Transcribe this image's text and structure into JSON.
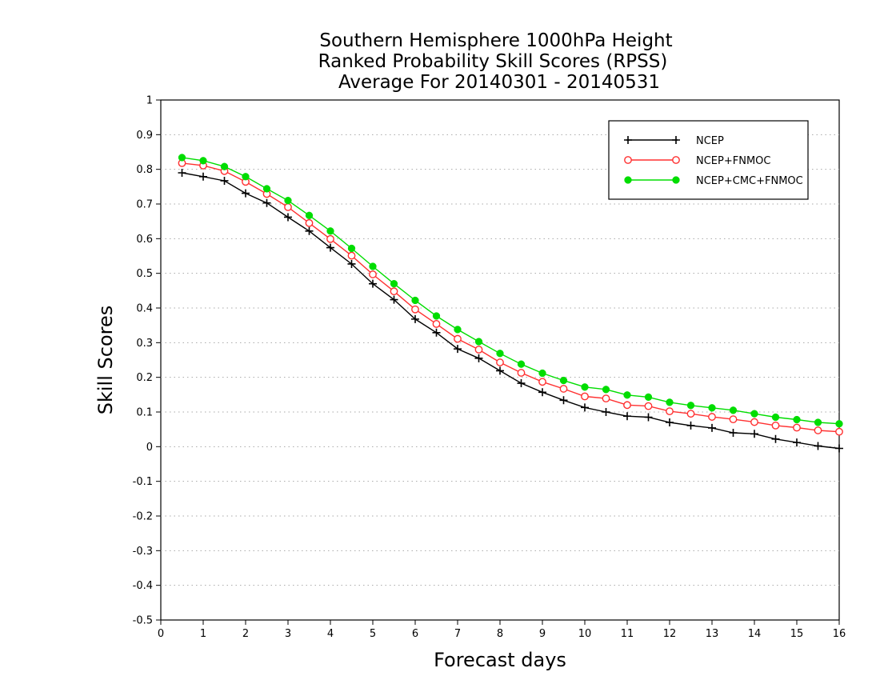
{
  "chart_data": {
    "type": "line",
    "title_lines": [
      "Southern Hemisphere 1000hPa Height",
      "Ranked Probability Skill Scores (RPSS)",
      "Average For 20140301 - 20140531"
    ],
    "xlabel": "Forecast days",
    "ylabel": "Skill Scores",
    "xlim": [
      0,
      16
    ],
    "ylim": [
      -0.5,
      1
    ],
    "x_ticks": [
      "0",
      "1",
      "2",
      "3",
      "4",
      "5",
      "6",
      "7",
      "8",
      "9",
      "10",
      "11",
      "12",
      "13",
      "14",
      "15",
      "16"
    ],
    "y_ticks": [
      "1",
      "0.9",
      "0.8",
      "0.7",
      "0.6",
      "0.5",
      "0.4",
      "0.3",
      "0.2",
      "0.1",
      "0",
      "-0.1",
      "-0.2",
      "-0.3",
      "-0.4",
      "-0.5"
    ],
    "y_tick_values": [
      1,
      0.9,
      0.8,
      0.7,
      0.6,
      0.5,
      0.4,
      0.3,
      0.2,
      0.1,
      0,
      -0.1,
      -0.2,
      -0.3,
      -0.4,
      -0.5
    ],
    "grid": "horizontal-dotted",
    "legend_position": "top-right",
    "x": [
      0.5,
      1,
      1.5,
      2,
      2.5,
      3,
      3.5,
      4,
      4.5,
      5,
      5.5,
      6,
      6.5,
      7,
      7.5,
      8,
      8.5,
      9,
      9.5,
      10,
      10.5,
      11,
      11.5,
      12,
      12.5,
      13,
      13.5,
      14,
      14.5,
      15,
      15.5,
      16
    ],
    "series": [
      {
        "name": "NCEP",
        "color": "#000000",
        "marker": "plus",
        "values": [
          0.79,
          0.779,
          0.767,
          0.731,
          0.703,
          0.662,
          0.622,
          0.574,
          0.527,
          0.47,
          0.424,
          0.368,
          0.329,
          0.282,
          0.255,
          0.219,
          0.183,
          0.157,
          0.134,
          0.113,
          0.1,
          0.088,
          0.085,
          0.07,
          0.061,
          0.054,
          0.04,
          0.037,
          0.022,
          0.012,
          0.002,
          -0.005
        ]
      },
      {
        "name": "NCEP+FNMOC",
        "color": "#ff3030",
        "marker": "open-circle",
        "values": [
          0.818,
          0.811,
          0.795,
          0.764,
          0.729,
          0.691,
          0.645,
          0.599,
          0.551,
          0.497,
          0.448,
          0.396,
          0.354,
          0.311,
          0.28,
          0.243,
          0.213,
          0.187,
          0.167,
          0.145,
          0.139,
          0.12,
          0.117,
          0.102,
          0.095,
          0.086,
          0.079,
          0.071,
          0.061,
          0.055,
          0.047,
          0.043
        ]
      },
      {
        "name": "NCEP+CMC+FNMOC",
        "color": "#00dd00",
        "marker": "filled-circle",
        "values": [
          0.834,
          0.825,
          0.808,
          0.779,
          0.744,
          0.71,
          0.667,
          0.622,
          0.572,
          0.52,
          0.47,
          0.422,
          0.377,
          0.338,
          0.303,
          0.269,
          0.238,
          0.212,
          0.191,
          0.172,
          0.165,
          0.149,
          0.143,
          0.128,
          0.119,
          0.112,
          0.105,
          0.095,
          0.085,
          0.078,
          0.07,
          0.066
        ]
      }
    ]
  }
}
